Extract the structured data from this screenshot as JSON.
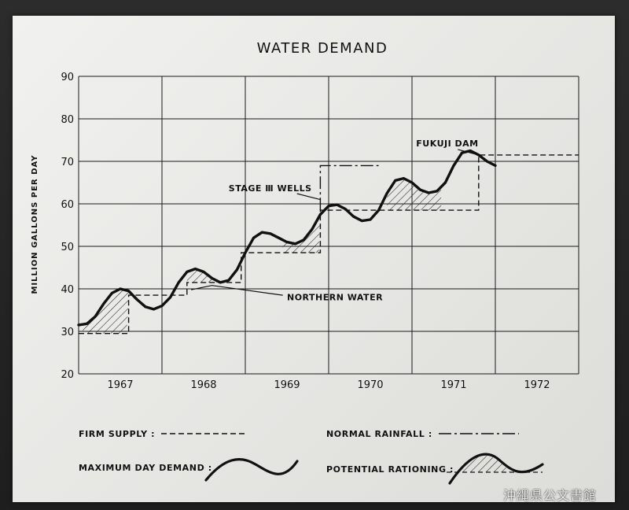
{
  "chart_data": {
    "type": "line",
    "title": "WATER DEMAND",
    "ylabel": "MILLION GALLONS PER DAY",
    "xlabel": "",
    "x_categories": [
      "1967",
      "1968",
      "1969",
      "1970",
      "1971",
      "1972"
    ],
    "x_range": [
      1966.5,
      1972.5
    ],
    "ylim": [
      20,
      90
    ],
    "y_ticks": [
      20,
      30,
      40,
      50,
      60,
      70,
      80,
      90
    ],
    "grid": true,
    "series": [
      {
        "name": "MAXIMUM DAY DEMAND",
        "style": "solid",
        "points": [
          [
            1966.5,
            31.5
          ],
          [
            1966.6,
            31.8
          ],
          [
            1966.7,
            33.5
          ],
          [
            1966.8,
            36.5
          ],
          [
            1966.9,
            39.0
          ],
          [
            1967.0,
            40.0
          ],
          [
            1967.1,
            39.5
          ],
          [
            1967.2,
            37.5
          ],
          [
            1967.3,
            35.8
          ],
          [
            1967.4,
            35.2
          ],
          [
            1967.5,
            36.0
          ],
          [
            1967.6,
            38.0
          ],
          [
            1967.7,
            41.5
          ],
          [
            1967.8,
            44.0
          ],
          [
            1967.9,
            44.7
          ],
          [
            1968.0,
            44.0
          ],
          [
            1968.1,
            42.5
          ],
          [
            1968.2,
            41.5
          ],
          [
            1968.3,
            42.0
          ],
          [
            1968.4,
            44.5
          ],
          [
            1968.5,
            48.5
          ],
          [
            1968.6,
            52.0
          ],
          [
            1968.7,
            53.3
          ],
          [
            1968.8,
            53.0
          ],
          [
            1968.9,
            52.0
          ],
          [
            1969.0,
            51.0
          ],
          [
            1969.1,
            50.6
          ],
          [
            1969.2,
            51.5
          ],
          [
            1969.3,
            54.0
          ],
          [
            1969.4,
            57.5
          ],
          [
            1969.5,
            59.5
          ],
          [
            1969.6,
            59.8
          ],
          [
            1969.7,
            58.8
          ],
          [
            1969.8,
            57.0
          ],
          [
            1969.9,
            56.0
          ],
          [
            1970.0,
            56.3
          ],
          [
            1970.1,
            58.5
          ],
          [
            1970.2,
            62.5
          ],
          [
            1970.3,
            65.5
          ],
          [
            1970.4,
            66.0
          ],
          [
            1970.5,
            65.0
          ],
          [
            1970.6,
            63.3
          ],
          [
            1970.7,
            62.6
          ],
          [
            1970.8,
            63.0
          ],
          [
            1970.9,
            65.0
          ],
          [
            1971.0,
            69.0
          ],
          [
            1971.1,
            72.0
          ],
          [
            1971.2,
            72.5
          ],
          [
            1971.3,
            71.5
          ],
          [
            1971.4,
            70.0
          ],
          [
            1971.5,
            69.0
          ]
        ]
      },
      {
        "name": "FIRM SUPPLY",
        "style": "dashed",
        "points": [
          [
            1966.5,
            29.5
          ],
          [
            1967.1,
            29.5
          ],
          [
            1967.1,
            38.5
          ],
          [
            1967.8,
            38.5
          ],
          [
            1967.8,
            41.5
          ],
          [
            1968.45,
            41.5
          ],
          [
            1968.45,
            48.5
          ],
          [
            1969.4,
            48.5
          ],
          [
            1969.4,
            58.5
          ],
          [
            1971.3,
            58.5
          ],
          [
            1971.3,
            71.5
          ],
          [
            1972.5,
            71.5
          ]
        ]
      },
      {
        "name": "NORMAL RAINFALL",
        "style": "dash-dot",
        "points": [
          [
            1969.4,
            58.5
          ],
          [
            1969.4,
            69.0
          ],
          [
            1970.1,
            69.0
          ]
        ]
      }
    ],
    "shaded_regions": {
      "name": "POTENTIAL RATIONING",
      "x_intervals": [
        [
          1966.55,
          1967.1
        ],
        [
          1967.8,
          1968.25
        ],
        [
          1968.95,
          1969.4
        ],
        [
          1970.2,
          1970.85
        ]
      ]
    },
    "annotations": [
      {
        "text": "FUKUJI DAM",
        "x": 1970.55,
        "y": 73.5
      },
      {
        "text": "STAGE Ⅲ WELLS",
        "x": 1968.3,
        "y": 63.0
      },
      {
        "text": "NORTHERN WATER",
        "x": 1969.0,
        "y": 37.3
      }
    ]
  },
  "legend": {
    "firm_supply": "FIRM SUPPLY :",
    "normal_rainfall": "NORMAL RAINFALL :",
    "maximum_day_demand": "MAXIMUM DAY DEMAND :",
    "potential_rationing": "POTENTIAL RATIONING :"
  },
  "watermark": "沖縄県公文書館"
}
